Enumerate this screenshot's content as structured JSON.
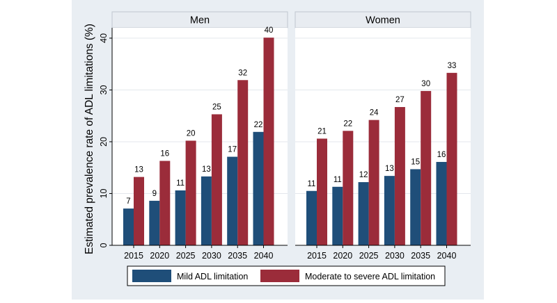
{
  "chart_data": {
    "type": "bar",
    "ylabel": "Estimated prevalence rate of ADL limitations (%)",
    "ylim": [
      0,
      42
    ],
    "yticks": [
      0,
      10,
      20,
      30,
      40
    ],
    "grid": true,
    "legend_placement": "bottom",
    "categories": [
      "2015",
      "2020",
      "2025",
      "2030",
      "2035",
      "2040"
    ],
    "legend": [
      {
        "name": "Mild ADL limitation",
        "color": "#1f4e79"
      },
      {
        "name": "Moderate to severe ADL limitation",
        "color": "#9b2c3a"
      }
    ],
    "panels": [
      {
        "title": "Men",
        "series": [
          {
            "name": "Mild ADL limitation",
            "values": [
              7.1,
              8.6,
              10.6,
              13.3,
              17.1,
              21.9
            ],
            "labels": [
              "7",
              "9",
              "11",
              "13",
              "17",
              "22"
            ]
          },
          {
            "name": "Moderate to severe ADL limitation",
            "values": [
              13.2,
              16.3,
              20.2,
              25.3,
              31.9,
              40.1
            ],
            "labels": [
              "13",
              "16",
              "20",
              "25",
              "32",
              "40"
            ]
          }
        ]
      },
      {
        "title": "Women",
        "series": [
          {
            "name": "Mild ADL limitation",
            "values": [
              10.5,
              11.3,
              12.2,
              13.4,
              14.7,
              16.1
            ],
            "labels": [
              "11",
              "11",
              "12",
              "13",
              "15",
              "16"
            ]
          },
          {
            "name": "Moderate to severe ADL limitation",
            "values": [
              20.6,
              22.1,
              24.2,
              26.7,
              29.8,
              33.3
            ],
            "labels": [
              "21",
              "22",
              "24",
              "27",
              "30",
              "33"
            ]
          }
        ]
      }
    ]
  }
}
